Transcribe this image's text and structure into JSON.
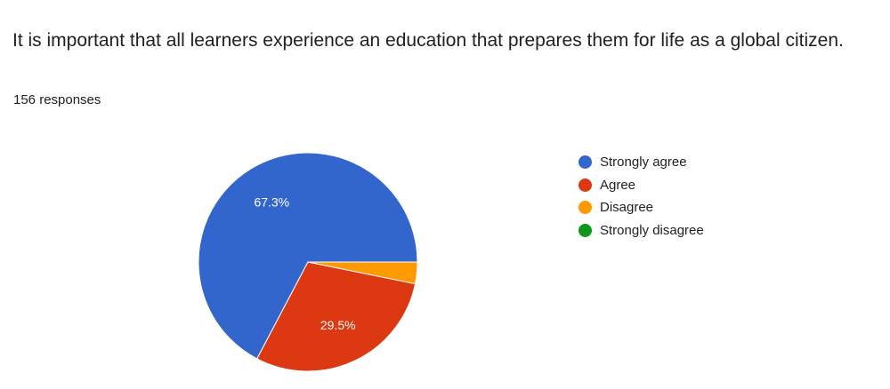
{
  "question": {
    "title": "It is important that all learners experience an education that prepares them for life as a global citizen.",
    "responses": "156 responses"
  },
  "chart_data": {
    "type": "pie",
    "categories": [
      "Strongly agree",
      "Agree",
      "Disagree",
      "Strongly disagree"
    ],
    "values": [
      67.3,
      29.5,
      3.2,
      0
    ],
    "data_labels": [
      "67.3%",
      "29.5%",
      "",
      ""
    ],
    "colors": [
      "#3366cc",
      "#dc3912",
      "#ff9900",
      "#109618"
    ],
    "legend": "right"
  }
}
